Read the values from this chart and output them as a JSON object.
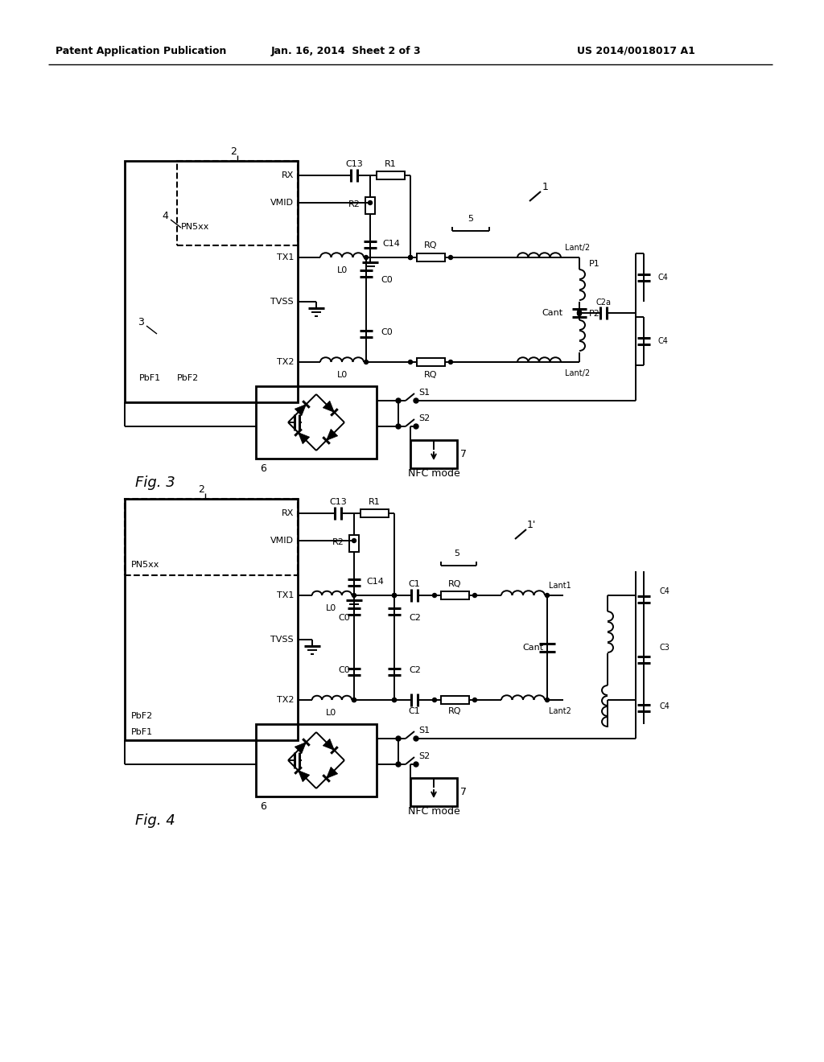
{
  "bg_color": "#ffffff",
  "header_left": "Patent Application Publication",
  "header_mid": "Jan. 16, 2014  Sheet 2 of 3",
  "header_right": "US 2014/0018017 A1",
  "fig3_label": "Fig. 3",
  "fig4_label": "Fig. 4",
  "nfc_mode": "NFC mode"
}
